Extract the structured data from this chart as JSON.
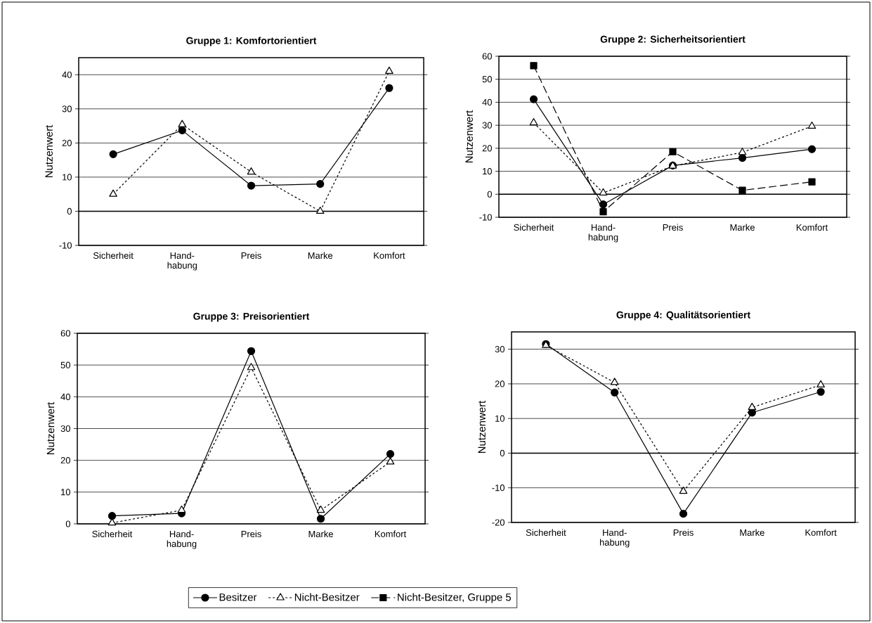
{
  "chart_data": [
    {
      "type": "line",
      "title": "Gruppe 1: Komfortorientiert",
      "ylabel": "Nutzenwert",
      "categories": [
        "Sicherheit",
        "Hand-habung",
        "Preis",
        "Marke",
        "Komfort"
      ],
      "ylim": [
        -10,
        45
      ],
      "yticks": [
        -10,
        0,
        10,
        20,
        30,
        40
      ],
      "grid": "y",
      "series": [
        {
          "color": "#000000",
          "marker": "circle",
          "line_style": "solid",
          "values": [
            16.7,
            23.7,
            7.5,
            8.0,
            36.1
          ]
        },
        {
          "color": "#000000",
          "marker": "triangle",
          "line_style": "dotted",
          "values": [
            5,
            25.4,
            11.5,
            0,
            41
          ]
        }
      ]
    },
    {
      "type": "line",
      "title": "Gruppe 2: Sicherheitsorientiert",
      "ylabel": "Nutzenwert",
      "categories": [
        "Sicherheit",
        "Hand-habung",
        "Preis",
        "Marke",
        "Komfort"
      ],
      "ylim": [
        -10,
        60
      ],
      "yticks": [
        -10,
        0,
        10,
        20,
        30,
        40,
        50,
        60
      ],
      "grid": "y",
      "legend": "bottom",
      "series": [
        {
          "name": "Besitzer",
          "color": "#000000",
          "marker": "circle",
          "line_style": "solid",
          "values": [
            41.3,
            -4.4,
            12.5,
            15.8,
            19.6
          ]
        },
        {
          "name": "Nicht-Besitzer",
          "color": "#000000",
          "marker": "triangle",
          "line_style": "dotted",
          "values": [
            31.1,
            0.6,
            12.3,
            18.2,
            29.6
          ]
        },
        {
          "name": "Nicht-Besitzer, Gruppe 5",
          "color": "#000000",
          "marker": "square",
          "line_style": "dashed",
          "values": [
            55.9,
            -7.6,
            18.5,
            1.7,
            5.4
          ]
        }
      ]
    },
    {
      "type": "line",
      "title": "Gruppe 3: Preisorientiert",
      "ylabel": "Nutzenwert",
      "categories": [
        "Sicherheit",
        "Hand-habung",
        "Preis",
        "Marke",
        "Komfort"
      ],
      "ylim": [
        0,
        60
      ],
      "yticks": [
        0,
        10,
        20,
        30,
        40,
        50,
        60
      ],
      "grid": "y",
      "series": [
        {
          "color": "#000000",
          "marker": "circle",
          "line_style": "solid",
          "values": [
            2.5,
            3.3,
            54.4,
            1.6,
            22.0
          ]
        },
        {
          "color": "#000000",
          "marker": "triangle",
          "line_style": "dotted",
          "values": [
            0.3,
            4.3,
            49.2,
            4.3,
            19.5
          ]
        }
      ]
    },
    {
      "type": "line",
      "title": "Gruppe 4: Qualitätsorientiert",
      "ylabel": "Nutzenwert",
      "categories": [
        "Sicherheit",
        "Hand-habung",
        "Preis",
        "Marke",
        "Komfort"
      ],
      "ylim": [
        -20,
        35
      ],
      "yticks": [
        -20,
        -10,
        0,
        10,
        20,
        30
      ],
      "grid": "y",
      "series": [
        {
          "color": "#000000",
          "marker": "circle",
          "line_style": "solid",
          "values": [
            31.5,
            17.5,
            -17.5,
            11.7,
            17.7
          ]
        },
        {
          "color": "#000000",
          "marker": "triangle",
          "line_style": "dotted",
          "values": [
            31.1,
            20.4,
            -11,
            13.2,
            19.7
          ]
        }
      ]
    }
  ]
}
